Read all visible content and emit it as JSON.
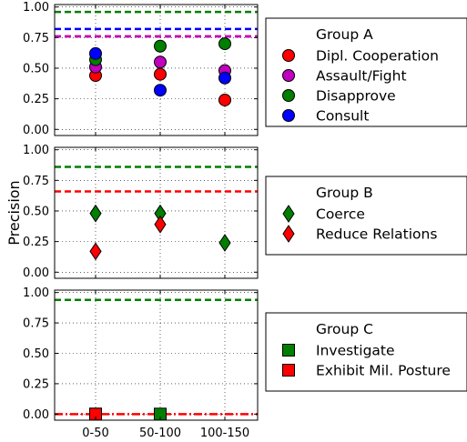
{
  "chart_data": [
    {
      "type": "scatter",
      "categories": [
        "0-50",
        "50-100",
        "100-150"
      ],
      "ylim": [
        -0.05,
        1.02
      ],
      "yticks": [
        "0.00",
        "0.25",
        "0.50",
        "0.75",
        "1.00"
      ],
      "grid": true,
      "ylabel": "",
      "legend": {
        "placement": "right",
        "title": "Group A"
      },
      "series": [
        {
          "name": "Dipl. Cooperation",
          "marker": "circle",
          "color": "#ff0000",
          "values": [
            0.44,
            0.45,
            0.24
          ],
          "baseline": 0.76,
          "baseline_style": "dashed"
        },
        {
          "name": "Assault/Fight",
          "marker": "circle",
          "color": "#bf00bf",
          "values": [
            0.51,
            0.55,
            0.48
          ],
          "baseline": 0.76,
          "baseline_style": "dashed"
        },
        {
          "name": "Disapprove",
          "marker": "circle",
          "color": "#007f00",
          "values": [
            0.57,
            0.68,
            0.7
          ],
          "baseline": 0.96,
          "baseline_style": "dashed"
        },
        {
          "name": "Consult",
          "marker": "circle",
          "color": "#0000ff",
          "values": [
            0.62,
            0.32,
            0.42
          ],
          "baseline": 0.82,
          "baseline_style": "dashed"
        }
      ]
    },
    {
      "type": "scatter",
      "categories": [
        "0-50",
        "50-100",
        "100-150"
      ],
      "ylim": [
        -0.05,
        1.02
      ],
      "yticks": [
        "0.00",
        "0.25",
        "0.50",
        "0.75",
        "1.00"
      ],
      "grid": true,
      "ylabel": "Precision",
      "legend": {
        "placement": "right",
        "title": "Group B"
      },
      "series": [
        {
          "name": "Coerce",
          "marker": "diamond",
          "color": "#007f00",
          "values": [
            0.48,
            0.48,
            0.24
          ],
          "baseline": 0.86,
          "baseline_style": "dashed"
        },
        {
          "name": "Reduce Relations",
          "marker": "diamond",
          "color": "#ff0000",
          "values": [
            0.17,
            0.39,
            null
          ],
          "baseline": 0.66,
          "baseline_style": "dashed"
        }
      ]
    },
    {
      "type": "scatter",
      "categories": [
        "0-50",
        "50-100",
        "100-150"
      ],
      "ylim": [
        -0.05,
        1.02
      ],
      "yticks": [
        "0.00",
        "0.25",
        "0.50",
        "0.75",
        "1.00"
      ],
      "grid": true,
      "ylabel": "",
      "legend": {
        "placement": "right",
        "title": "Group C"
      },
      "series": [
        {
          "name": "Investigate",
          "marker": "square",
          "color": "#007f00",
          "values": [
            0.0,
            0.0,
            null
          ],
          "baseline": 0.94,
          "baseline_style": "dashed"
        },
        {
          "name": "Exhibit Mil. Posture",
          "marker": "square",
          "color": "#ff0000",
          "values": [
            0.0,
            null,
            null
          ],
          "baseline": 0.0,
          "baseline_style": "dashdot"
        }
      ]
    }
  ]
}
